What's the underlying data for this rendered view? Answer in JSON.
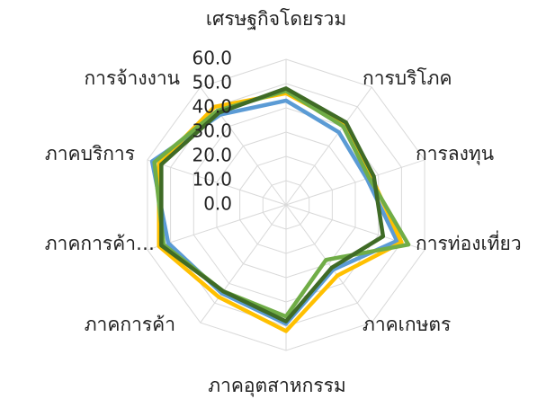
{
  "chart_data": {
    "type": "radar",
    "categories": [
      "เศรษฐกิจโดยรวม",
      "การบริโภค",
      "การลงทุน",
      "การท่องเที่ยว",
      "ภาคเกษตร",
      "ภาคอุตสาหกรรม",
      "ภาคการค้า",
      "ภาคการค้า…",
      "ภาคบริการ",
      "การจ้างงาน"
    ],
    "series": [
      {
        "color": "#5b9bd5",
        "values": [
          43,
          37,
          35,
          48,
          33,
          49,
          45,
          51,
          58,
          46
        ]
      },
      {
        "color": "#ffc000",
        "values": [
          46,
          41,
          37,
          50,
          36,
          52,
          47,
          55,
          55,
          50
        ]
      },
      {
        "color": "#70ad47",
        "values": [
          47,
          40,
          36,
          53,
          28,
          46,
          44,
          53,
          57,
          48
        ]
      },
      {
        "color": "#3f6b26",
        "values": [
          48,
          42,
          38,
          42,
          32,
          48,
          44,
          54,
          54,
          47
        ]
      }
    ],
    "ylim": [
      0,
      60
    ],
    "yticks": [
      {
        "value": 0,
        "label": "0.0"
      },
      {
        "value": 10,
        "label": "10.0"
      },
      {
        "value": 20,
        "label": "20.0"
      },
      {
        "value": 30,
        "label": "30.0"
      },
      {
        "value": 40,
        "label": "40.0"
      },
      {
        "value": 50,
        "label": "50.0"
      },
      {
        "value": 60,
        "label": "60.0"
      }
    ],
    "grid": true
  }
}
